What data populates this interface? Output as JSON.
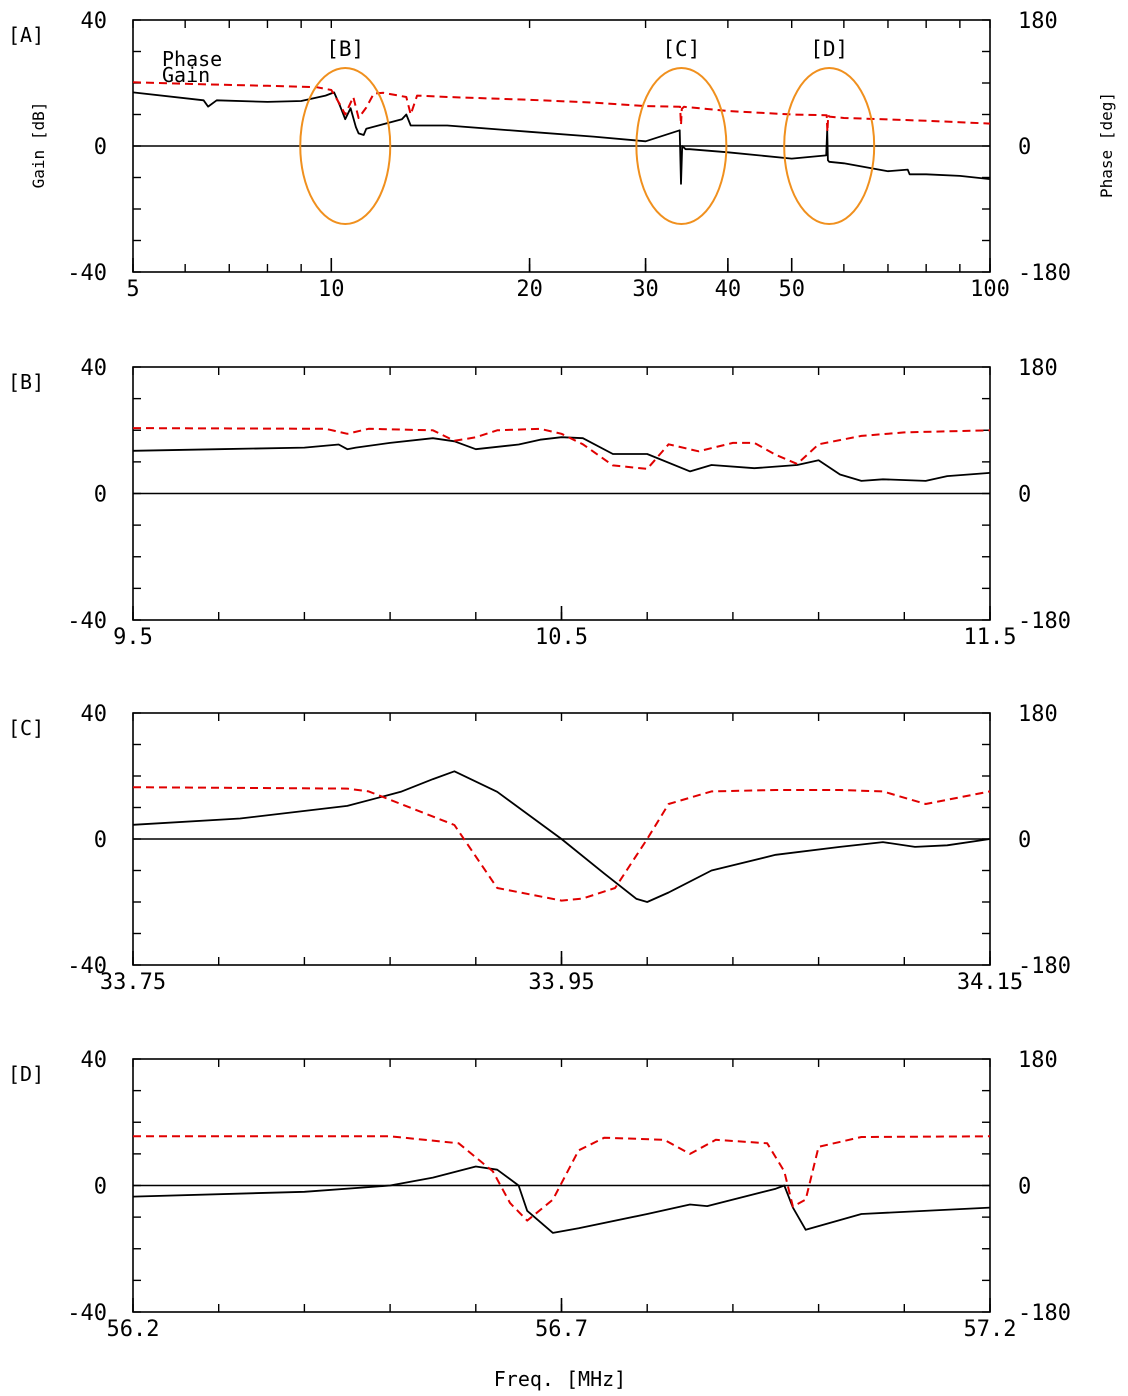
{
  "colors": {
    "gain": "#000000",
    "phase": "#e00000",
    "annotation": "#f0901e",
    "frame": "#000000"
  },
  "xlabel": "Freq. [MHz]",
  "ylabel_left": "Gain [dB]",
  "ylabel_right": "Phase [deg]",
  "chart_data": [
    {
      "type": "line",
      "panel": "[A]",
      "xscale": "log",
      "xlim": [
        5,
        100
      ],
      "xticks": [
        5,
        10,
        20,
        30,
        40,
        50,
        100
      ],
      "ylim_left": [
        -40,
        40
      ],
      "ylim_right": [
        -180,
        180
      ],
      "yticks_left": [
        -40,
        0,
        40
      ],
      "yticks_right": [
        -180,
        0,
        180
      ],
      "legend": [
        "Phase",
        "Gain"
      ],
      "annotations": [
        {
          "label": "[B]",
          "x": 10.5
        },
        {
          "label": "[C]",
          "x": 34
        },
        {
          "label": "[D]",
          "x": 57
        }
      ],
      "series": [
        {
          "name": "Gain",
          "axis": "left",
          "style": "solid",
          "x": [
            5,
            6.4,
            6.5,
            6.7,
            8,
            9,
            9.8,
            10.1,
            10.3,
            10.5,
            10.7,
            10.9,
            11.0,
            11.2,
            11.3,
            12.8,
            13.0,
            13.2,
            15,
            20,
            25,
            30,
            33.8,
            33.95,
            34.1,
            34.5,
            35,
            40,
            50,
            56.4,
            56.6,
            56.75,
            57,
            60,
            70,
            75,
            75.5,
            76,
            80,
            90,
            100
          ],
          "y": [
            17,
            14.5,
            12.5,
            14.5,
            14,
            14.3,
            16,
            17,
            13,
            8.5,
            12,
            6,
            4,
            3.5,
            5.5,
            8.5,
            10,
            6.5,
            6.5,
            4.5,
            3,
            1.5,
            5,
            -12,
            0,
            -1,
            -1,
            -2,
            -4,
            -3,
            5,
            -4.5,
            -5,
            -5.5,
            -8,
            -7.5,
            -9,
            -9,
            -9,
            -9.5,
            -10.5
          ]
        },
        {
          "name": "Phase",
          "axis": "right",
          "style": "dashed",
          "x": [
            5,
            6.5,
            8,
            9.5,
            10,
            10.3,
            10.5,
            10.8,
            11.0,
            11.3,
            11.6,
            12,
            13,
            13.2,
            13.5,
            15,
            20,
            25,
            30,
            33.85,
            33.95,
            34.05,
            34.3,
            40,
            50,
            56.5,
            56.65,
            56.8,
            57,
            60,
            70,
            80,
            90,
            100
          ],
          "y": [
            91,
            88,
            86,
            84,
            80,
            60,
            45,
            70,
            40,
            55,
            75,
            76,
            70,
            45,
            72,
            70,
            66,
            62,
            57,
            56,
            30,
            53,
            56,
            50,
            45,
            44,
            20,
            44,
            42,
            40,
            38,
            36,
            34,
            32
          ]
        }
      ]
    },
    {
      "type": "line",
      "panel": "[B]",
      "xlim": [
        9.5,
        11.5
      ],
      "xticks": [
        9.5,
        10.5,
        11.5
      ],
      "ylim_left": [
        -40,
        40
      ],
      "ylim_right": [
        -180,
        180
      ],
      "yticks_left": [
        -40,
        0,
        40
      ],
      "yticks_right": [
        -180,
        0,
        180
      ],
      "series": [
        {
          "name": "Gain",
          "axis": "left",
          "style": "solid",
          "x": [
            9.5,
            9.7,
            9.9,
            9.98,
            10.0,
            10.02,
            10.1,
            10.2,
            10.25,
            10.3,
            10.4,
            10.45,
            10.5,
            10.55,
            10.62,
            10.7,
            10.8,
            10.85,
            10.95,
            11.05,
            11.1,
            11.15,
            11.2,
            11.25,
            11.35,
            11.4,
            11.5
          ],
          "y": [
            13.5,
            14,
            14.5,
            15.5,
            14,
            14.5,
            16,
            17.5,
            16.5,
            14,
            15.5,
            17,
            17.8,
            17.5,
            12.5,
            12.5,
            7,
            9,
            8,
            9,
            10.5,
            6,
            4,
            4.5,
            4,
            5.5,
            6.5
          ]
        },
        {
          "name": "Phase",
          "axis": "right",
          "style": "dashed",
          "x": [
            9.5,
            9.95,
            10.0,
            10.05,
            10.2,
            10.25,
            10.3,
            10.35,
            10.45,
            10.5,
            10.55,
            10.62,
            10.7,
            10.75,
            10.82,
            10.9,
            10.95,
            11.0,
            11.05,
            11.1,
            11.2,
            11.3,
            11.5
          ],
          "y": [
            93,
            92,
            85,
            92,
            90,
            75,
            80,
            90,
            92,
            85,
            70,
            40,
            35,
            70,
            60,
            72,
            72,
            55,
            42,
            70,
            82,
            87,
            90
          ]
        }
      ]
    },
    {
      "type": "line",
      "panel": "[C]",
      "xlim": [
        33.75,
        34.15
      ],
      "xticks": [
        33.75,
        33.95,
        34.15
      ],
      "ylim_left": [
        -40,
        40
      ],
      "ylim_right": [
        -180,
        180
      ],
      "yticks_left": [
        -40,
        0,
        40
      ],
      "yticks_right": [
        -180,
        0,
        180
      ],
      "series": [
        {
          "name": "Gain",
          "axis": "left",
          "style": "solid",
          "x": [
            33.75,
            33.8,
            33.85,
            33.875,
            33.89,
            33.9,
            33.92,
            33.95,
            33.97,
            33.985,
            33.99,
            34.0,
            34.02,
            34.05,
            34.08,
            34.1,
            34.115,
            34.13,
            34.15
          ],
          "y": [
            4.5,
            6.5,
            10.5,
            15,
            19,
            21.5,
            15,
            0,
            -11,
            -19,
            -20,
            -17,
            -10,
            -5,
            -2.5,
            -1,
            -2.5,
            -2,
            0
          ]
        },
        {
          "name": "Phase",
          "axis": "right",
          "style": "dashed",
          "x": [
            33.75,
            33.85,
            33.86,
            33.9,
            33.92,
            33.95,
            33.96,
            33.975,
            33.99,
            34.0,
            34.02,
            34.05,
            34.08,
            34.1,
            34.12,
            34.15
          ],
          "y": [
            74,
            72,
            68,
            20,
            -70,
            -88,
            -85,
            -70,
            0,
            50,
            68,
            70,
            70,
            68,
            50,
            68
          ]
        }
      ]
    },
    {
      "type": "line",
      "panel": "[D]",
      "xlim": [
        56.2,
        57.2
      ],
      "xticks": [
        56.2,
        56.7,
        57.2
      ],
      "ylim_left": [
        -40,
        40
      ],
      "ylim_right": [
        -180,
        180
      ],
      "yticks_left": [
        -40,
        0,
        40
      ],
      "yticks_right": [
        -180,
        0,
        180
      ],
      "series": [
        {
          "name": "Gain",
          "axis": "left",
          "style": "solid",
          "x": [
            56.2,
            56.4,
            56.5,
            56.55,
            56.6,
            56.625,
            56.65,
            56.66,
            56.69,
            56.72,
            56.8,
            56.85,
            56.87,
            56.95,
            56.96,
            56.97,
            56.985,
            57.05,
            57.2
          ],
          "y": [
            -3.5,
            -2,
            0,
            2.5,
            6,
            5,
            0,
            -8,
            -15,
            -13.5,
            -9,
            -6,
            -6.5,
            -1,
            0,
            -7,
            -14,
            -9,
            -7
          ]
        },
        {
          "name": "Phase",
          "axis": "right",
          "style": "dashed",
          "x": [
            56.2,
            56.5,
            56.58,
            56.62,
            56.64,
            56.66,
            56.69,
            56.72,
            56.75,
            56.82,
            56.85,
            56.88,
            56.94,
            56.96,
            56.97,
            56.985,
            57.0,
            57.05,
            57.2
          ],
          "y": [
            70,
            70,
            60,
            20,
            -25,
            -50,
            -20,
            50,
            68,
            65,
            45,
            65,
            60,
            20,
            -30,
            -20,
            55,
            69,
            70
          ]
        }
      ]
    }
  ]
}
